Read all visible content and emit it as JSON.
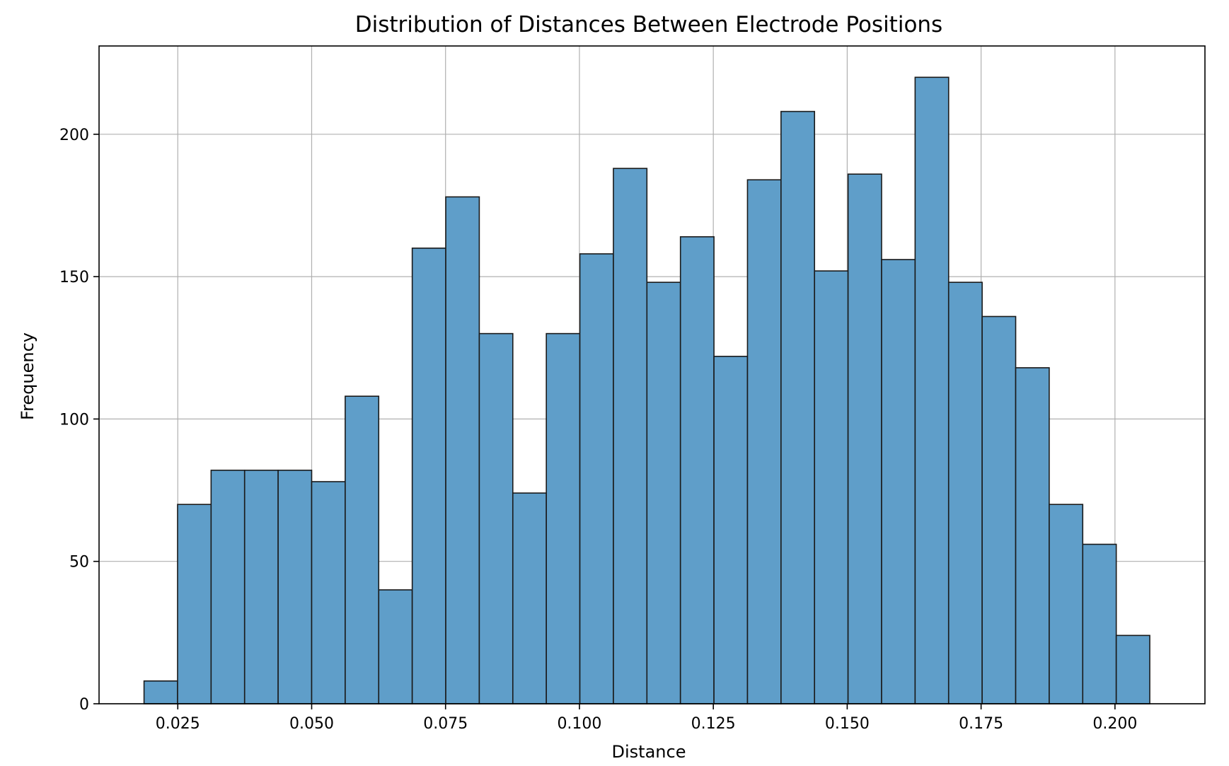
{
  "chart_data": {
    "type": "bar",
    "title": "Distribution of Distances Between Electrode Positions",
    "xlabel": "Distance",
    "ylabel": "Frequency",
    "bin_edges": [
      0.0187,
      0.02496,
      0.03122,
      0.03748,
      0.04374,
      0.05,
      0.05626,
      0.06252,
      0.06878,
      0.07504,
      0.0813,
      0.08756,
      0.09382,
      0.10008,
      0.10634,
      0.1126,
      0.11886,
      0.12512,
      0.13138,
      0.13764,
      0.1439,
      0.15016,
      0.15642,
      0.16268,
      0.16894,
      0.1752,
      0.18146,
      0.18772,
      0.19398,
      0.20024,
      0.2065
    ],
    "values": [
      8,
      70,
      82,
      82,
      82,
      78,
      108,
      40,
      160,
      178,
      130,
      74,
      130,
      158,
      188,
      148,
      164,
      122,
      184,
      208,
      152,
      186,
      156,
      220,
      148,
      136,
      118,
      70,
      56,
      24
    ],
    "xlim": [
      0.0103,
      0.2168
    ],
    "ylim": [
      0,
      231
    ],
    "xticks": [
      0.025,
      0.05,
      0.075,
      0.1,
      0.125,
      0.15,
      0.175,
      0.2
    ],
    "xtick_labels": [
      "0.025",
      "0.050",
      "0.075",
      "0.100",
      "0.125",
      "0.150",
      "0.175",
      "0.200"
    ],
    "yticks": [
      0,
      50,
      100,
      150,
      200
    ],
    "ytick_labels": [
      "0",
      "50",
      "100",
      "150",
      "200"
    ],
    "grid": true,
    "colors": {
      "bar_fill": "#5f9ec9",
      "bar_edge": "#1a1a1a",
      "grid": "#b0b0b0"
    }
  }
}
